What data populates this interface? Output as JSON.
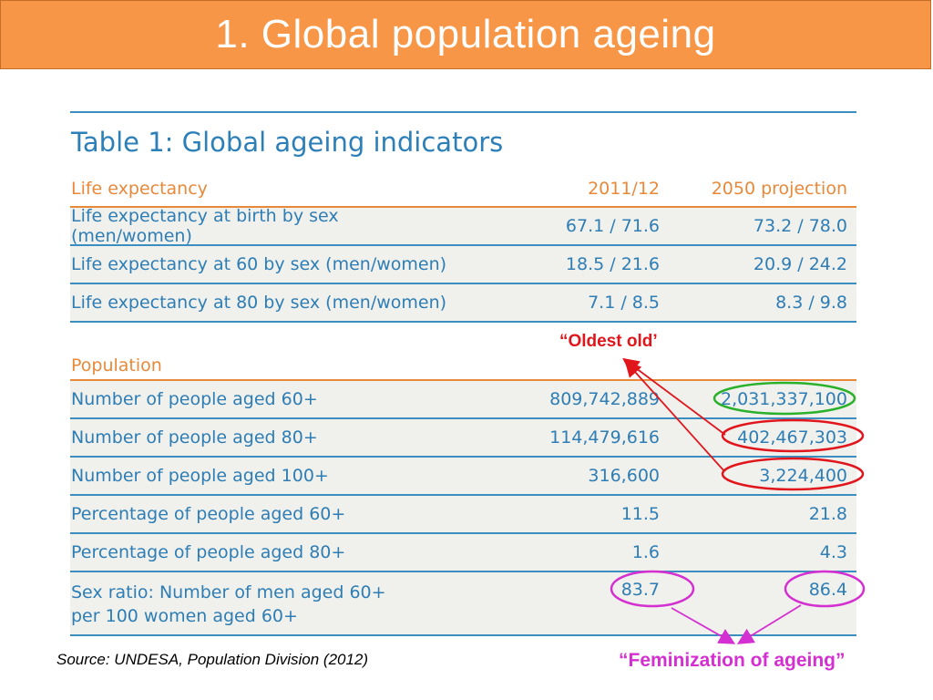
{
  "title": "1. Global population ageing",
  "table": {
    "title": "Table 1: Global ageing indicators",
    "life_section": {
      "header": "Life expectancy",
      "col2": "2011/12",
      "col3": "2050 projection",
      "rows": [
        {
          "label": "Life expectancy at birth by sex (men/women)",
          "v2011": "67.1 / 71.6",
          "v2050": "73.2 / 78.0"
        },
        {
          "label": "Life expectancy at 60 by sex (men/women)",
          "v2011": "18.5 / 21.6",
          "v2050": "20.9 / 24.2"
        },
        {
          "label": "Life expectancy at 80 by sex (men/women)",
          "v2011": "7.1 / 8.5",
          "v2050": "8.3 / 9.8"
        }
      ]
    },
    "population_section": {
      "header": "Population",
      "rows": [
        {
          "label": "Number of people aged 60+",
          "v2011": "809,742,889",
          "v2050": "2,031,337,100"
        },
        {
          "label": "Number of people aged 80+",
          "v2011": "114,479,616",
          "v2050": "402,467,303"
        },
        {
          "label": "Number of people aged 100+",
          "v2011": "316,600",
          "v2050": "3,224,400"
        },
        {
          "label": "Percentage of people aged 60+",
          "v2011": "11.5",
          "v2050": "21.8"
        },
        {
          "label": "Percentage of people aged 80+",
          "v2011": "1.6",
          "v2050": "4.3"
        },
        {
          "label_line1": "Sex ratio: Number of men aged 60+",
          "label_line2": "per 100 women aged 60+",
          "v2011": "83.7",
          "v2050": "86.4"
        }
      ]
    }
  },
  "annotations": {
    "oldest_old": "“Oldest old’",
    "feminization": "“Feminization of ageing”"
  },
  "source": "Source: UNDESA, Population Division (2012)",
  "colors": {
    "title_bar": "#f79646",
    "table_blue": "#2e7db5",
    "table_orange": "#e8893a",
    "row_bg": "#f0f1ec",
    "green_ellipse": "#2bb02b",
    "red_ellipse": "#e0161c",
    "magenta_ellipse": "#d42fd0"
  }
}
